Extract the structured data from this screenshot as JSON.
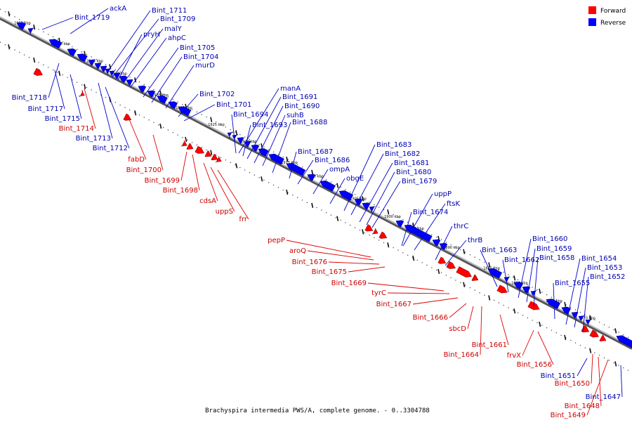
{
  "legend": {
    "items": [
      {
        "label": "Forward",
        "color": "#ff0000"
      },
      {
        "label": "Reverse",
        "color": "#0000ff"
      }
    ]
  },
  "caption": "Brachyspira intermedia PWS/A, complete genome. - 0..3304788",
  "colors": {
    "forward": "#ff0000",
    "reverse": "#0000ff",
    "label_forward": "#cc0000",
    "label_reverse": "#0000b0",
    "backbone": "#888888"
  },
  "scale_labels": [
    "1955 kbp",
    "1950 kbp",
    "1945 kbp",
    "1940 kbp",
    "1935 kbp",
    "1930 kbp",
    "1925 kbp",
    "1920 kbp",
    "1915 kbp",
    "1910 kbp",
    "1905 kbp",
    "1900 kbp",
    "1895 kbp",
    "1890 kbp",
    "1885 kbp",
    "1880 kbp",
    "1875 kbp",
    "1870 kbp"
  ],
  "reverse_genes": [
    "ackA",
    "Bint_1719",
    "Bint_1711",
    "Bint_1709",
    "pryH",
    "malY",
    "ahpC",
    "Bint_1705",
    "Bint_1704",
    "murD",
    "Bint_1718",
    "Bint_1717",
    "Bint_1715",
    "Bint_1713",
    "Bint_1712",
    "Bint_1702",
    "Bint_1701",
    "Bint_1694",
    "Bint_1693",
    "manA",
    "Bint_1691",
    "Bint_1690",
    "suhB",
    "Bint_1688",
    "Bint_1687",
    "Bint_1686",
    "ompA",
    "obgE",
    "Bint_1683",
    "Bint_1682",
    "Bint_1681",
    "Bint_1680",
    "Bint_1679",
    "uppP",
    "ftsK",
    "Bint_1674",
    "thrC",
    "thrB",
    "Bint_1663",
    "Bint_1662",
    "Bint_1660",
    "Bint_1659",
    "Bint_1658",
    "Bint_1655",
    "Bint_1654",
    "Bint_1653",
    "Bint_1652",
    "Bint_1651",
    "Bint_1647"
  ],
  "forward_genes": [
    "Bint_1714",
    "fabD",
    "Bint_1700",
    "Bint_1699",
    "Bint_1698",
    "cdsA",
    "uppS",
    "frr",
    "pepP",
    "aroQ",
    "Bint_1676",
    "Bint_1675",
    "Bint_1669",
    "tyrC",
    "Bint_1667",
    "Bint_1666",
    "sbcD",
    "Bint_1664",
    "Bint_1661",
    "frvX",
    "Bint_1656",
    "Bint_1650",
    "Bint_1648",
    "Bint_1649"
  ]
}
